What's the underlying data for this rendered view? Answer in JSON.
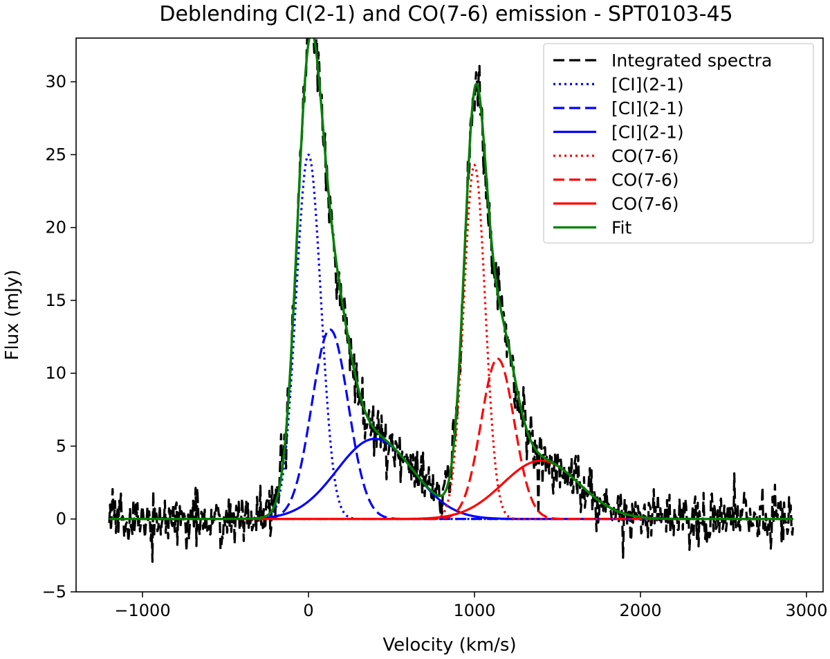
{
  "chart_data": {
    "type": "line",
    "title": "Deblending CI(2-1) and CO(7-6) emission - SPT0103-45",
    "xlabel": "Velocity (km/s)",
    "ylabel": "Flux (mJy)",
    "xlim": [
      -1400,
      3100
    ],
    "ylim": [
      -5,
      33
    ],
    "xticks": [
      -1000,
      0,
      1000,
      2000,
      3000
    ],
    "xtick_labels": [
      "−1000",
      "0",
      "1000",
      "2000",
      "3000"
    ],
    "yticks": [
      -5,
      0,
      5,
      10,
      15,
      20,
      25,
      30
    ],
    "ytick_labels": [
      "−5",
      "0",
      "5",
      "10",
      "15",
      "20",
      "25",
      "30"
    ],
    "legend_position": "top-right",
    "data_range": [
      -1200,
      2920
    ],
    "components": [
      {
        "name": "[CI](2-1)",
        "color": "#0000ff",
        "style": "dotted",
        "amp": 25.0,
        "center": 0,
        "sigma": 75
      },
      {
        "name": "[CI](2-1)",
        "color": "#0000ff",
        "style": "dashed",
        "amp": 13.0,
        "center": 130,
        "sigma": 110
      },
      {
        "name": "[CI](2-1)",
        "color": "#0000ff",
        "style": "solid",
        "amp": 5.5,
        "center": 400,
        "sigma": 230
      },
      {
        "name": "CO(7-6)",
        "color": "#ff0000",
        "style": "dotted",
        "amp": 24.3,
        "center": 1000,
        "sigma": 65
      },
      {
        "name": "CO(7-6)",
        "color": "#ff0000",
        "style": "dashed",
        "amp": 11.0,
        "center": 1140,
        "sigma": 100
      },
      {
        "name": "CO(7-6)",
        "color": "#ff0000",
        "style": "solid",
        "amp": 4.0,
        "center": 1400,
        "sigma": 230
      }
    ],
    "series": [
      {
        "name": "Integrated spectra",
        "color": "#000000",
        "style": "dashed",
        "noise_rms": 0.9,
        "noise_seed": 7
      },
      {
        "name": "[CI](2-1)",
        "color": "#0000ff",
        "style": "dotted"
      },
      {
        "name": "[CI](2-1)",
        "color": "#0000ff",
        "style": "dashed"
      },
      {
        "name": "[CI](2-1)",
        "color": "#0000ff",
        "style": "solid"
      },
      {
        "name": "CO(7-6)",
        "color": "#ff0000",
        "style": "dotted"
      },
      {
        "name": "CO(7-6)",
        "color": "#ff0000",
        "style": "dashed"
      },
      {
        "name": "CO(7-6)",
        "color": "#ff0000",
        "style": "solid"
      },
      {
        "name": "Fit",
        "color": "#008000",
        "style": "solid"
      }
    ]
  }
}
